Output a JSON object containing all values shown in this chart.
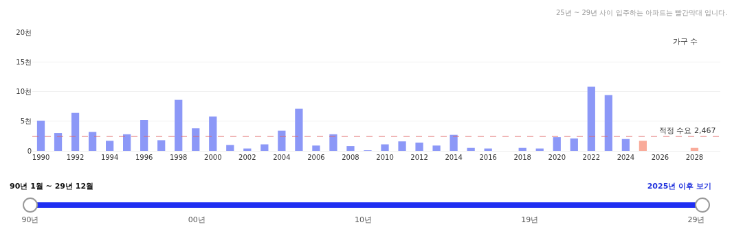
{
  "chart_data": {
    "type": "bar",
    "subtitle": "25년 ~ 29년 사이 입주하는 아파트는 빨간막대 입니다.",
    "ylabel": "가구 수",
    "x": [
      1990,
      1991,
      1992,
      1993,
      1994,
      1995,
      1996,
      1997,
      1998,
      1999,
      2000,
      2001,
      2002,
      2003,
      2004,
      2005,
      2006,
      2007,
      2008,
      2009,
      2010,
      2011,
      2012,
      2013,
      2014,
      2015,
      2016,
      2017,
      2018,
      2019,
      2020,
      2021,
      2022,
      2023,
      2024,
      2025,
      2026,
      2027,
      2028,
      2029
    ],
    "values": [
      5.1,
      3.0,
      6.4,
      3.2,
      1.7,
      2.8,
      5.2,
      1.8,
      8.6,
      3.8,
      5.8,
      1.0,
      0.4,
      1.1,
      3.4,
      7.1,
      0.9,
      2.8,
      0.8,
      0.1,
      1.1,
      1.6,
      1.4,
      0.9,
      2.7,
      0.5,
      0.4,
      0,
      0.5,
      0.4,
      2.3,
      2.1,
      10.8,
      9.4,
      2.0,
      1.7,
      0,
      0,
      0.5,
      0
    ],
    "colors": [
      "#8c98f7",
      "#8c98f7",
      "#8c98f7",
      "#8c98f7",
      "#8c98f7",
      "#8c98f7",
      "#8c98f7",
      "#8c98f7",
      "#8c98f7",
      "#8c98f7",
      "#8c98f7",
      "#8c98f7",
      "#8c98f7",
      "#8c98f7",
      "#8c98f7",
      "#8c98f7",
      "#8c98f7",
      "#8c98f7",
      "#8c98f7",
      "#8c98f7",
      "#8c98f7",
      "#8c98f7",
      "#8c98f7",
      "#8c98f7",
      "#8c98f7",
      "#8c98f7",
      "#8c98f7",
      "#8c98f7",
      "#8c98f7",
      "#8c98f7",
      "#8c98f7",
      "#8c98f7",
      "#8c98f7",
      "#8c98f7",
      "#8c98f7",
      "#f9ab9a",
      "#f9ab9a",
      "#f9ab9a",
      "#f9ab9a",
      "#f9ab9a"
    ],
    "xlim": [
      1989.5,
      2029.5
    ],
    "xticks": [
      1990,
      1992,
      1994,
      1996,
      1998,
      2000,
      2002,
      2004,
      2006,
      2008,
      2010,
      2012,
      2014,
      2016,
      2018,
      2020,
      2022,
      2024,
      2026,
      2028
    ],
    "ylim": [
      0,
      20
    ],
    "yticks": [
      0,
      {
        "value": 5,
        "label": "5천"
      },
      {
        "value": 10,
        "label": "10천"
      },
      {
        "value": 15,
        "label": "15천"
      },
      {
        "value": 20,
        "label": "20천"
      }
    ],
    "ref_lines": [
      {
        "axis": "y",
        "value": 2.467,
        "label": "적정 수요 2,467",
        "color": "#e06666",
        "line_style": "dashed"
      }
    ],
    "grid": "y",
    "annotations": [
      "90년 1월 ~ 29년 12월",
      "2025년 이후 보기",
      "90년",
      "00년",
      "10년",
      "19년",
      "29년"
    ]
  }
}
